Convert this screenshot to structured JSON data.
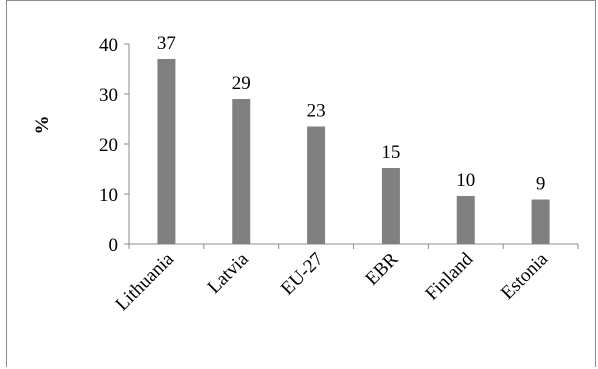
{
  "chart_data": {
    "type": "bar",
    "title": "",
    "xlabel": "",
    "ylabel": "%",
    "categories": [
      "Lithuania",
      "Latvia",
      "EU-27",
      "EBR",
      "Finland",
      "Estonia"
    ],
    "values": [
      37,
      29,
      23.5,
      15.2,
      9.6,
      8.9
    ],
    "data_labels": [
      "37",
      "29",
      "23",
      "15",
      "10",
      "9"
    ],
    "ylim": [
      0,
      40
    ],
    "yticks": [
      "0",
      "10",
      "20",
      "30",
      "40"
    ],
    "grid": false,
    "legend": "none",
    "bar_color": "#808080"
  }
}
